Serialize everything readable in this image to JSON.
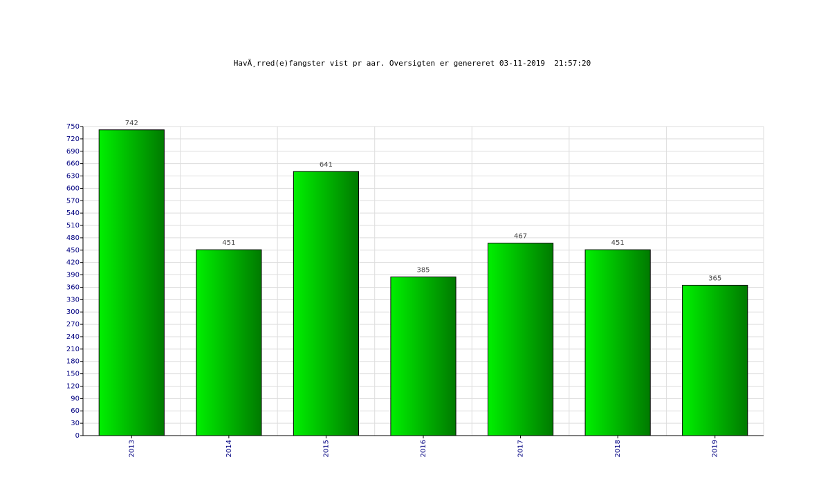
{
  "chart_data": {
    "type": "bar",
    "title": "HavÃ¸rred(e)fangster vist pr aar. Oversigten er genereret 03-11-2019  21:57:20",
    "categories": [
      "2013",
      "2014",
      "2015",
      "2016",
      "2017",
      "2018",
      "2019"
    ],
    "values": [
      742,
      451,
      641,
      385,
      467,
      451,
      365
    ],
    "gradient": [
      "#00f000",
      "#007a00"
    ],
    "ylim": [
      0,
      750
    ],
    "yticks": [
      0,
      30,
      60,
      90,
      120,
      150,
      180,
      210,
      240,
      270,
      300,
      330,
      360,
      390,
      420,
      450,
      480,
      510,
      540,
      570,
      600,
      630,
      660,
      690,
      720,
      750
    ],
    "grid": true
  }
}
